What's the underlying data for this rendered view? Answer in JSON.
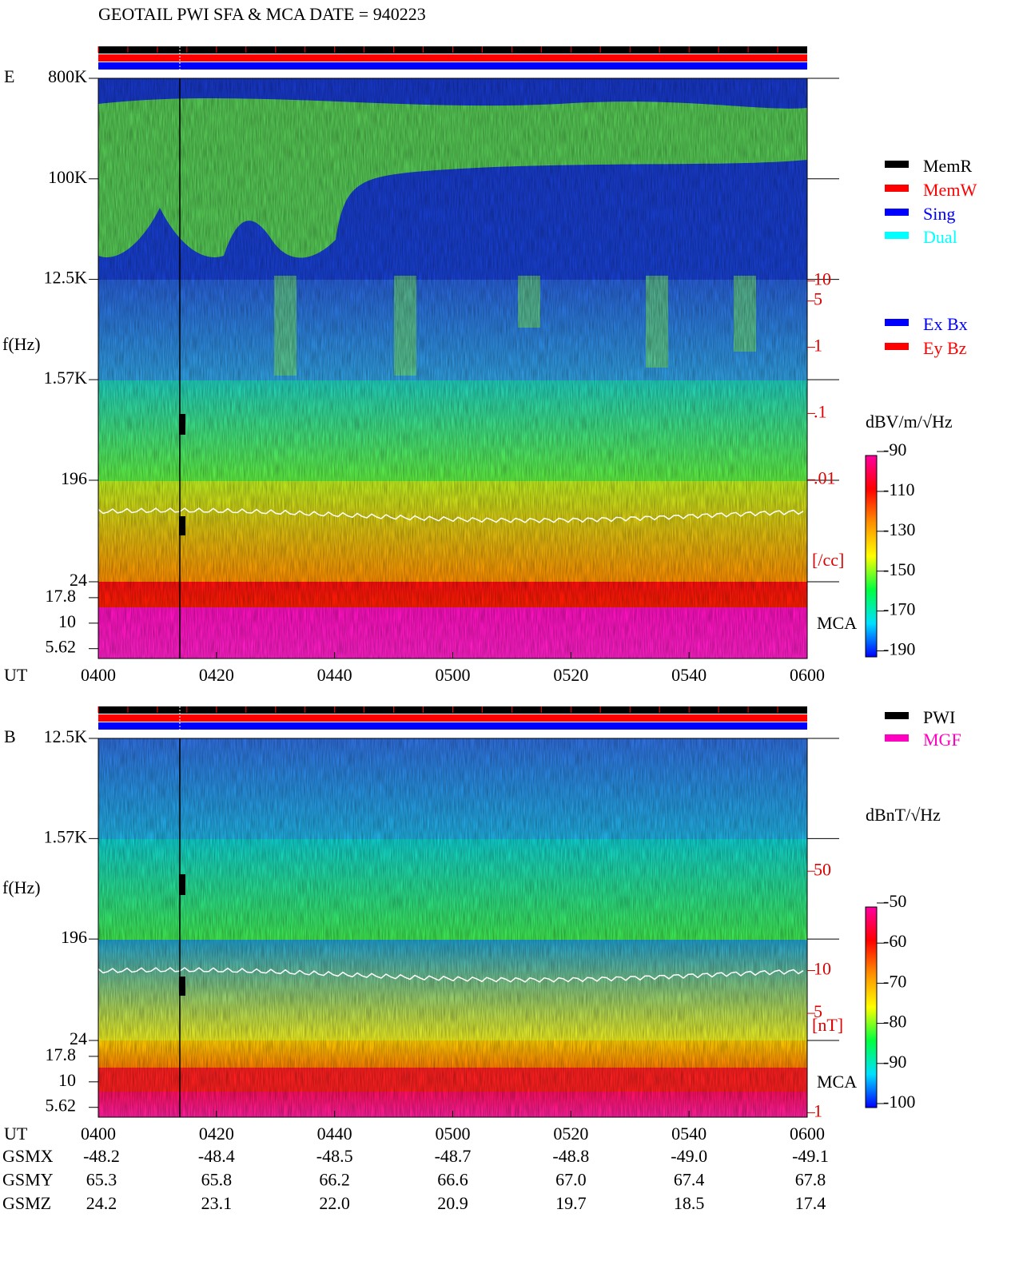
{
  "title": "GEOTAIL  PWI SFA & MCA   DATE = 940223",
  "chart_data": [
    {
      "type": "spectrogram",
      "panel": "E",
      "ylabel": "f(Hz)",
      "xlabel": "UT",
      "log": true,
      "ylim": [
        24,
        800000
      ],
      "yticks": [
        {
          "value": 800000,
          "label": "800K"
        },
        {
          "value": 100000,
          "label": "100K"
        },
        {
          "value": 12500,
          "label": "12.5K"
        },
        {
          "value": 1570,
          "label": "1.57K"
        },
        196,
        24
      ],
      "mca_label": "MCA",
      "mca_ylim": [
        4.5,
        25.5
      ],
      "mca_yticks": [
        17.8,
        10,
        5.62
      ],
      "x_labels": [
        "0400",
        "0420",
        "0440",
        "0500",
        "0520",
        "0540",
        "0600"
      ],
      "y2label": "[/cc]",
      "y2lim": [
        2e-05,
        11500
      ],
      "y2ticks": [
        10,
        5,
        1,
        {
          "value": 0.1,
          "label": ".1"
        },
        {
          "value": 0.01,
          "label": ".01"
        }
      ],
      "colorbar": {
        "label": "dBV/m/√Hz",
        "lim": [
          -193,
          -92
        ],
        "ticks": [
          -90,
          -110,
          -130,
          -150,
          -170,
          -190
        ]
      },
      "status_colors": [
        "#000000",
        "#ff0000",
        "#0000ff"
      ],
      "legends": [
        [
          {
            "name": "MemR",
            "color": "#000000"
          },
          {
            "name": "MemW",
            "color": "#ff0000"
          },
          {
            "name": "Sing",
            "color": "#0000ff"
          },
          {
            "name": "Dual",
            "color": "#00ffff"
          }
        ],
        [
          {
            "name": "Ex Bx",
            "color": "#0000ff"
          },
          {
            "name": "Ey Bz",
            "color": "#ff0000"
          }
        ]
      ]
    },
    {
      "type": "spectrogram",
      "panel": "B",
      "ylabel": "f(Hz)",
      "xlabel": "UT",
      "log": true,
      "ylim": [
        24,
        12500
      ],
      "yticks": [
        {
          "value": 12500,
          "label": "12.5K"
        },
        {
          "value": 1570,
          "label": "1.57K"
        },
        196,
        24
      ],
      "mca_label": "MCA",
      "mca_ylim": [
        4.5,
        25.5
      ],
      "mca_yticks": [
        17.8,
        10,
        5.62
      ],
      "x_labels": [
        "0400",
        "0420",
        "0440",
        "0500",
        "0520",
        "0540",
        "0600"
      ],
      "y2label": "[nT]",
      "y2lim": [
        0.93,
        430
      ],
      "y2ticks": [
        50,
        10,
        5,
        1
      ],
      "colorbar": {
        "label": "dBnT/√Hz",
        "lim": [
          -101,
          -51
        ],
        "ticks": [
          -50,
          -60,
          -70,
          -80,
          -90,
          -100
        ]
      },
      "status_colors": [
        "#000000",
        "#ff0000",
        "#0000ff"
      ],
      "legends": [
        [
          {
            "name": "PWI",
            "color": "#000000"
          },
          {
            "name": "MGF",
            "color": "#ff00c0"
          }
        ]
      ]
    }
  ],
  "colormap": [
    "#ff00a0",
    "#ff0000",
    "#ff9000",
    "#ffff00",
    "#00ff40",
    "#00e0ff",
    "#0000ff"
  ],
  "orbit": [
    {
      "name": "GSMX",
      "values": [
        "-48.2",
        "-48.4",
        "-48.5",
        "-48.7",
        "-48.8",
        "-49.0",
        "-49.1"
      ]
    },
    {
      "name": "GSMY",
      "values": [
        "65.3",
        "65.8",
        "66.2",
        "66.6",
        "67.0",
        "67.4",
        "67.8"
      ]
    },
    {
      "name": "GSMZ",
      "values": [
        "24.2",
        "23.1",
        "22.0",
        "20.9",
        "19.7",
        "18.5",
        "17.4"
      ]
    }
  ]
}
